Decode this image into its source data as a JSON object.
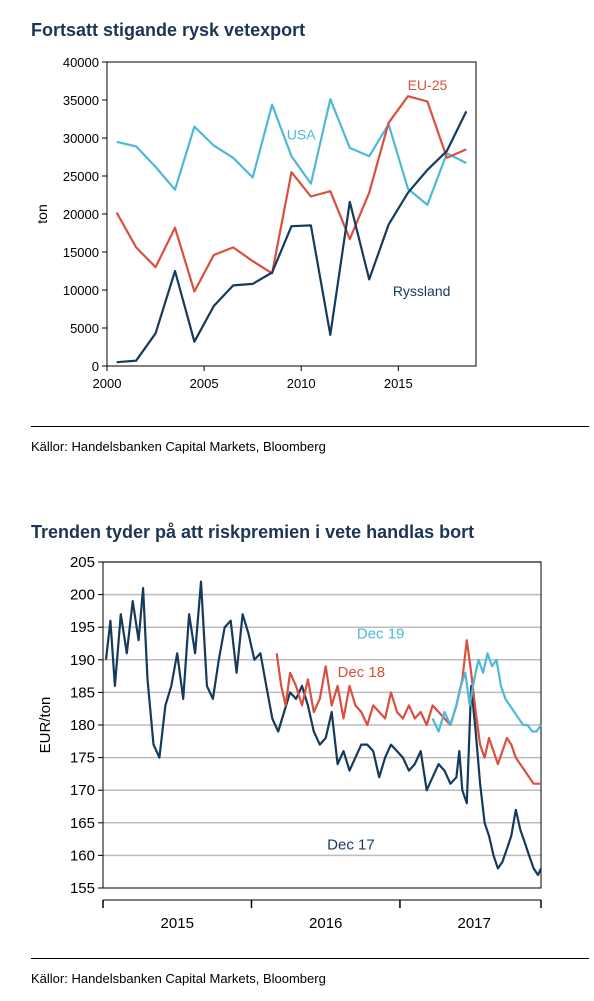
{
  "chart_data": [
    {
      "type": "line",
      "title": "Fortsatt stigande rysk vetexport",
      "ylabel": "ton",
      "xlim": [
        2000,
        2019
      ],
      "ylim": [
        0,
        40000
      ],
      "xticks": [
        2000,
        2005,
        2010,
        2015
      ],
      "yticks": [
        0,
        5000,
        10000,
        15000,
        20000,
        25000,
        30000,
        35000,
        40000
      ],
      "grid": false,
      "source": "Källor: Handelsbanken Capital Markets, Bloomberg",
      "series": [
        {
          "name": "USA",
          "color": "#4fb8d8",
          "x": [
            2000.5,
            2001.5,
            2002.5,
            2003.5,
            2004.5,
            2005.5,
            2006.5,
            2007.5,
            2008.5,
            2009.5,
            2010.5,
            2011.5,
            2012.5,
            2013.5,
            2014.5,
            2015.5,
            2016.5,
            2017.5,
            2018.5
          ],
          "y": [
            29500,
            28900,
            26200,
            23200,
            31500,
            29000,
            27400,
            24800,
            34400,
            27600,
            24000,
            35100,
            28700,
            27600,
            31800,
            23300,
            21200,
            28000,
            26700
          ]
        },
        {
          "name": "EU-25",
          "color": "#d9503f",
          "x": [
            2000.5,
            2001.5,
            2002.5,
            2003.5,
            2004.5,
            2005.5,
            2006.5,
            2007.5,
            2008.5,
            2009.5,
            2010.5,
            2011.5,
            2012.5,
            2013.5,
            2014.5,
            2015.5,
            2016.5,
            2017.5,
            2018.5
          ],
          "y": [
            20200,
            15600,
            13000,
            18200,
            9800,
            14600,
            15600,
            13800,
            12200,
            25500,
            22300,
            23000,
            16700,
            22800,
            32000,
            35500,
            34800,
            27400,
            28500
          ]
        },
        {
          "name": "Ryssland",
          "color": "#163a5c",
          "x": [
            2000.5,
            2001.5,
            2002.5,
            2003.5,
            2004.5,
            2005.5,
            2006.5,
            2007.5,
            2008.5,
            2009.5,
            2010.5,
            2011.5,
            2012.5,
            2013.5,
            2014.5,
            2015.5,
            2016.5,
            2017.5,
            2018.5
          ],
          "y": [
            500,
            700,
            4300,
            12500,
            3200,
            7900,
            10600,
            10800,
            12300,
            18400,
            18500,
            4100,
            21600,
            11400,
            18600,
            22800,
            25800,
            28300,
            33500
          ]
        }
      ],
      "annotations": [
        {
          "text": "EU-25",
          "x": 2016.5,
          "y": 36300,
          "color": "#d9503f"
        },
        {
          "text": "USA",
          "x": 2010.0,
          "y": 29800,
          "color": "#4fb8d8"
        },
        {
          "text": "Ryssland",
          "x": 2016.2,
          "y": 9200,
          "color": "#163a5c"
        }
      ]
    },
    {
      "type": "line",
      "title": "Trenden tyder på att riskpremien i vete handlas bort",
      "ylabel": "EUR/ton",
      "xlim": [
        2014.5,
        2017.45
      ],
      "ylim": [
        155,
        205
      ],
      "xticks": [
        2015,
        2016,
        2017
      ],
      "yticks": [
        155,
        160,
        165,
        170,
        175,
        180,
        185,
        190,
        195,
        200,
        205
      ],
      "grid": true,
      "source": "Källor: Handelsbanken Capital Markets, Bloomberg",
      "series": [
        {
          "name": "Dec 17",
          "color": "#163a5c",
          "x": [
            2014.52,
            2014.55,
            2014.58,
            2014.62,
            2014.66,
            2014.7,
            2014.74,
            2014.77,
            2014.8,
            2014.84,
            2014.88,
            2014.92,
            2014.96,
            2015.0,
            2015.04,
            2015.08,
            2015.12,
            2015.16,
            2015.2,
            2015.24,
            2015.28,
            2015.32,
            2015.36,
            2015.4,
            2015.44,
            2015.48,
            2015.52,
            2015.56,
            2015.6,
            2015.64,
            2015.68,
            2015.72,
            2015.76,
            2015.8,
            2015.84,
            2015.88,
            2015.92,
            2015.96,
            2016.0,
            2016.04,
            2016.08,
            2016.12,
            2016.16,
            2016.2,
            2016.24,
            2016.28,
            2016.32,
            2016.36,
            2016.4,
            2016.44,
            2016.48,
            2016.52,
            2016.56,
            2016.6,
            2016.64,
            2016.68,
            2016.72,
            2016.76,
            2016.8,
            2016.84,
            2016.88,
            2016.9,
            2016.92,
            2016.95,
            2016.98,
            2017.01,
            2017.04,
            2017.07,
            2017.1,
            2017.13,
            2017.16,
            2017.19,
            2017.22,
            2017.25,
            2017.28,
            2017.31,
            2017.34,
            2017.37,
            2017.4,
            2017.43,
            2017.45
          ],
          "y": [
            190,
            196,
            186,
            197,
            191,
            199,
            193,
            201,
            187,
            177,
            175,
            183,
            186,
            191,
            184,
            197,
            191,
            202,
            186,
            184,
            190,
            195,
            196,
            188,
            197,
            194,
            190,
            191,
            186,
            181,
            179,
            182,
            185,
            184,
            186,
            183,
            179,
            177,
            178,
            182,
            174,
            176,
            173,
            175,
            177,
            177,
            176,
            172,
            175,
            177,
            176,
            175,
            173,
            174,
            176,
            170,
            172,
            174,
            173,
            171,
            172,
            176,
            170,
            168,
            186,
            179,
            171,
            165,
            163,
            160,
            158,
            159,
            161,
            163,
            167,
            164,
            162,
            160,
            158,
            157,
            158
          ]
        },
        {
          "name": "Dec 18",
          "color": "#d9503f",
          "x": [
            2015.67,
            2015.7,
            2015.73,
            2015.76,
            2015.8,
            2015.84,
            2015.88,
            2015.92,
            2015.96,
            2016.0,
            2016.04,
            2016.08,
            2016.12,
            2016.16,
            2016.2,
            2016.24,
            2016.28,
            2016.32,
            2016.36,
            2016.4,
            2016.44,
            2016.48,
            2016.52,
            2016.56,
            2016.6,
            2016.64,
            2016.68,
            2016.72,
            2016.76,
            2016.8,
            2016.84,
            2016.88,
            2016.9,
            2016.92,
            2016.95,
            2016.98,
            2017.01,
            2017.04,
            2017.07,
            2017.1,
            2017.13,
            2017.16,
            2017.19,
            2017.22,
            2017.25,
            2017.28,
            2017.31,
            2017.34,
            2017.37,
            2017.4,
            2017.43,
            2017.45
          ],
          "y": [
            191,
            186,
            183,
            188,
            186,
            183,
            187,
            182,
            184,
            189,
            183,
            186,
            181,
            186,
            183,
            182,
            180,
            183,
            182,
            181,
            185,
            182,
            181,
            183,
            181,
            182,
            180,
            183,
            182,
            181,
            180,
            183,
            185,
            187,
            193,
            188,
            182,
            177,
            175,
            178,
            176,
            174,
            176,
            178,
            177,
            175,
            174,
            173,
            172,
            171,
            171,
            171
          ]
        },
        {
          "name": "Dec 19",
          "color": "#4fb8d8",
          "x": [
            2016.72,
            2016.76,
            2016.8,
            2016.84,
            2016.88,
            2016.91,
            2016.94,
            2016.97,
            2017.0,
            2017.03,
            2017.06,
            2017.09,
            2017.12,
            2017.15,
            2017.18,
            2017.21,
            2017.24,
            2017.27,
            2017.3,
            2017.33,
            2017.36,
            2017.39,
            2017.42,
            2017.45
          ],
          "y": [
            181,
            179,
            182,
            180,
            183,
            186,
            188,
            183,
            187,
            190,
            188,
            191,
            189,
            190,
            186,
            184,
            183,
            182,
            181,
            180,
            180,
            179,
            179,
            180
          ]
        }
      ],
      "annotations": [
        {
          "text": "Dec 19",
          "x": 2016.37,
          "y": 193.3,
          "color": "#4fb8d8"
        },
        {
          "text": "Dec 18",
          "x": 2016.24,
          "y": 187.4,
          "color": "#d9503f"
        },
        {
          "text": "Dec 17",
          "x": 2016.17,
          "y": 160.9,
          "color": "#163a5c"
        }
      ]
    }
  ]
}
